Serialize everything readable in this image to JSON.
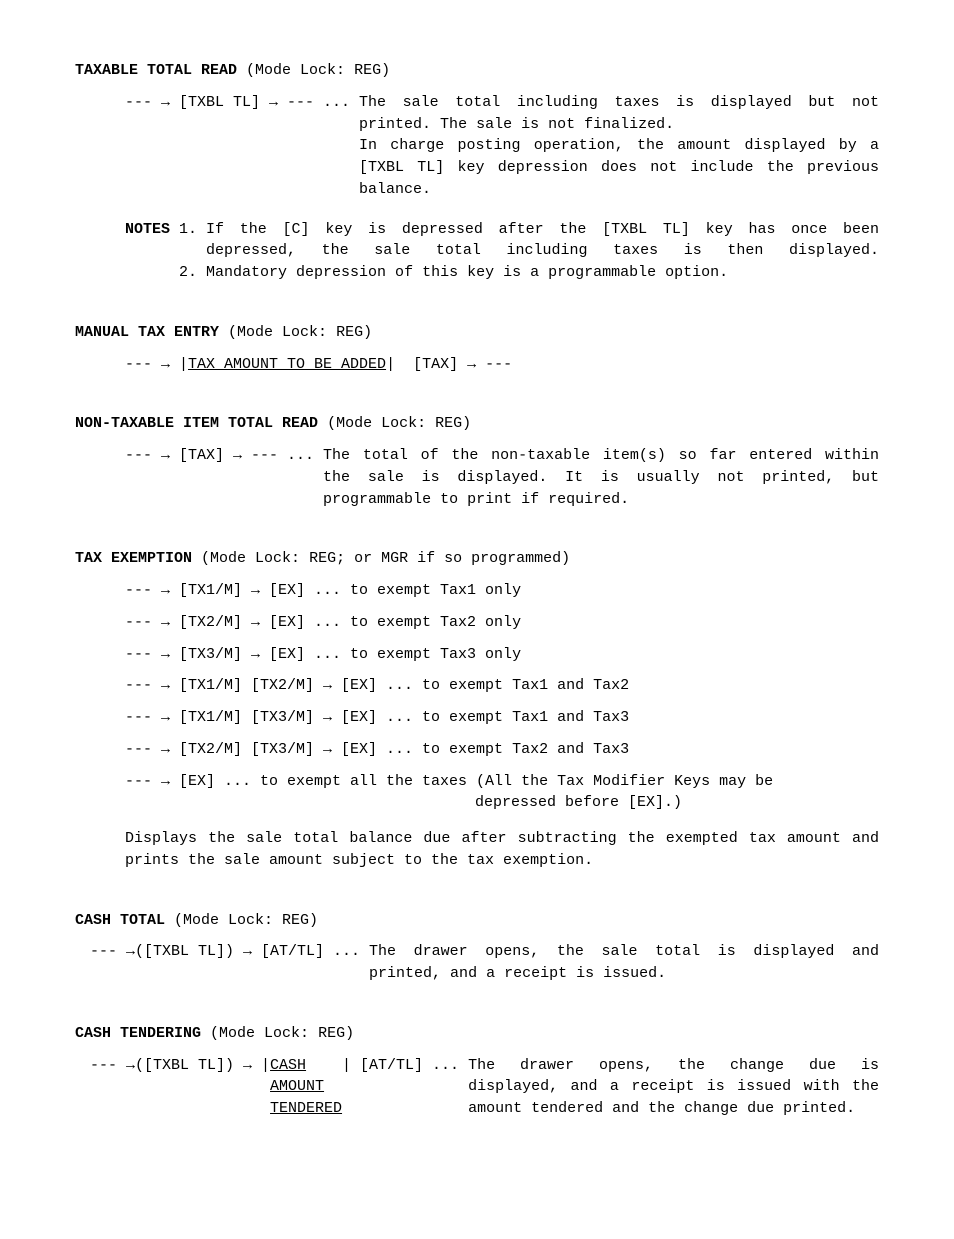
{
  "sections": {
    "taxable_total_read": {
      "title": "TAXABLE TOTAL READ",
      "mode": "(Mode Lock: REG)",
      "flow_prefix": "--- → [TXBL TL] → --- ... ",
      "flow_desc": "The sale total including taxes is displayed but not printed.  The sale is not finalized.\nIn charge posting operation, the amount displayed by a [TXBL TL] key depression does not include the previous balance.",
      "notes_label": "NOTES ",
      "notes": [
        {
          "num": "1. ",
          "text": "If the [C] key is depressed after the [TXBL TL] key has once been depressed, the sale total including taxes is then displayed."
        },
        {
          "num": "2. ",
          "text": "Mandatory depression of this key is a programmable option."
        }
      ]
    },
    "manual_tax_entry": {
      "title": "MANUAL TAX ENTRY",
      "mode": "(Mode Lock: REG)",
      "flow_before": "--- → |",
      "flow_underlined": "TAX AMOUNT TO BE ADDED",
      "flow_after": "|  [TAX] → ---"
    },
    "non_taxable": {
      "title": "NON-TAXABLE ITEM TOTAL READ",
      "mode": "(Mode Lock: REG)",
      "flow_prefix": "--- → [TAX] → --- ... ",
      "flow_desc": "The total of the non-taxable item(s) so far entered within the sale is displayed.  It is usually not printed, but programmable to print if required."
    },
    "tax_exemption": {
      "title": "TAX EXEMPTION",
      "mode": "(Mode Lock: REG; or MGR if so programmed)",
      "lines": [
        "--- → [TX1/M] → [EX] ... to exempt Tax1 only",
        "--- → [TX2/M] → [EX] ... to exempt Tax2 only",
        "--- → [TX3/M] → [EX] ... to exempt Tax3 only",
        "--- → [TX1/M] [TX2/M] → [EX] ... to exempt Tax1 and Tax2",
        "--- → [TX1/M] [TX3/M] → [EX] ... to exempt Tax1 and Tax3",
        "--- → [TX2/M] [TX3/M] → [EX] ... to exempt Tax2 and Tax3",
        "--- → [EX] ... to exempt all the taxes (All the Tax Modifier Keys may be"
      ],
      "continuation": "depressed before [EX].)",
      "para": "Displays the sale total balance due after subtracting the exempted tax amount and prints the sale amount subject to the tax exemption."
    },
    "cash_total": {
      "title": "CASH TOTAL",
      "mode": "(Mode Lock: REG)",
      "flow_prefix": "--- →([TXBL TL]) → [AT/TL] ... ",
      "flow_desc": "The drawer opens, the sale total is displayed and printed, and a receipt is issued."
    },
    "cash_tendering": {
      "title": "CASH TENDERING",
      "mode": "(Mode Lock: REG)",
      "flow_before": "--- →([TXBL TL]) → |",
      "flow_underlined": "CASH AMOUNT TENDERED",
      "flow_after": "| [AT/TL] ... ",
      "flow_desc": "The drawer opens, the change due is displayed, and a receipt is issued with the amount tendered and the change due printed."
    }
  }
}
